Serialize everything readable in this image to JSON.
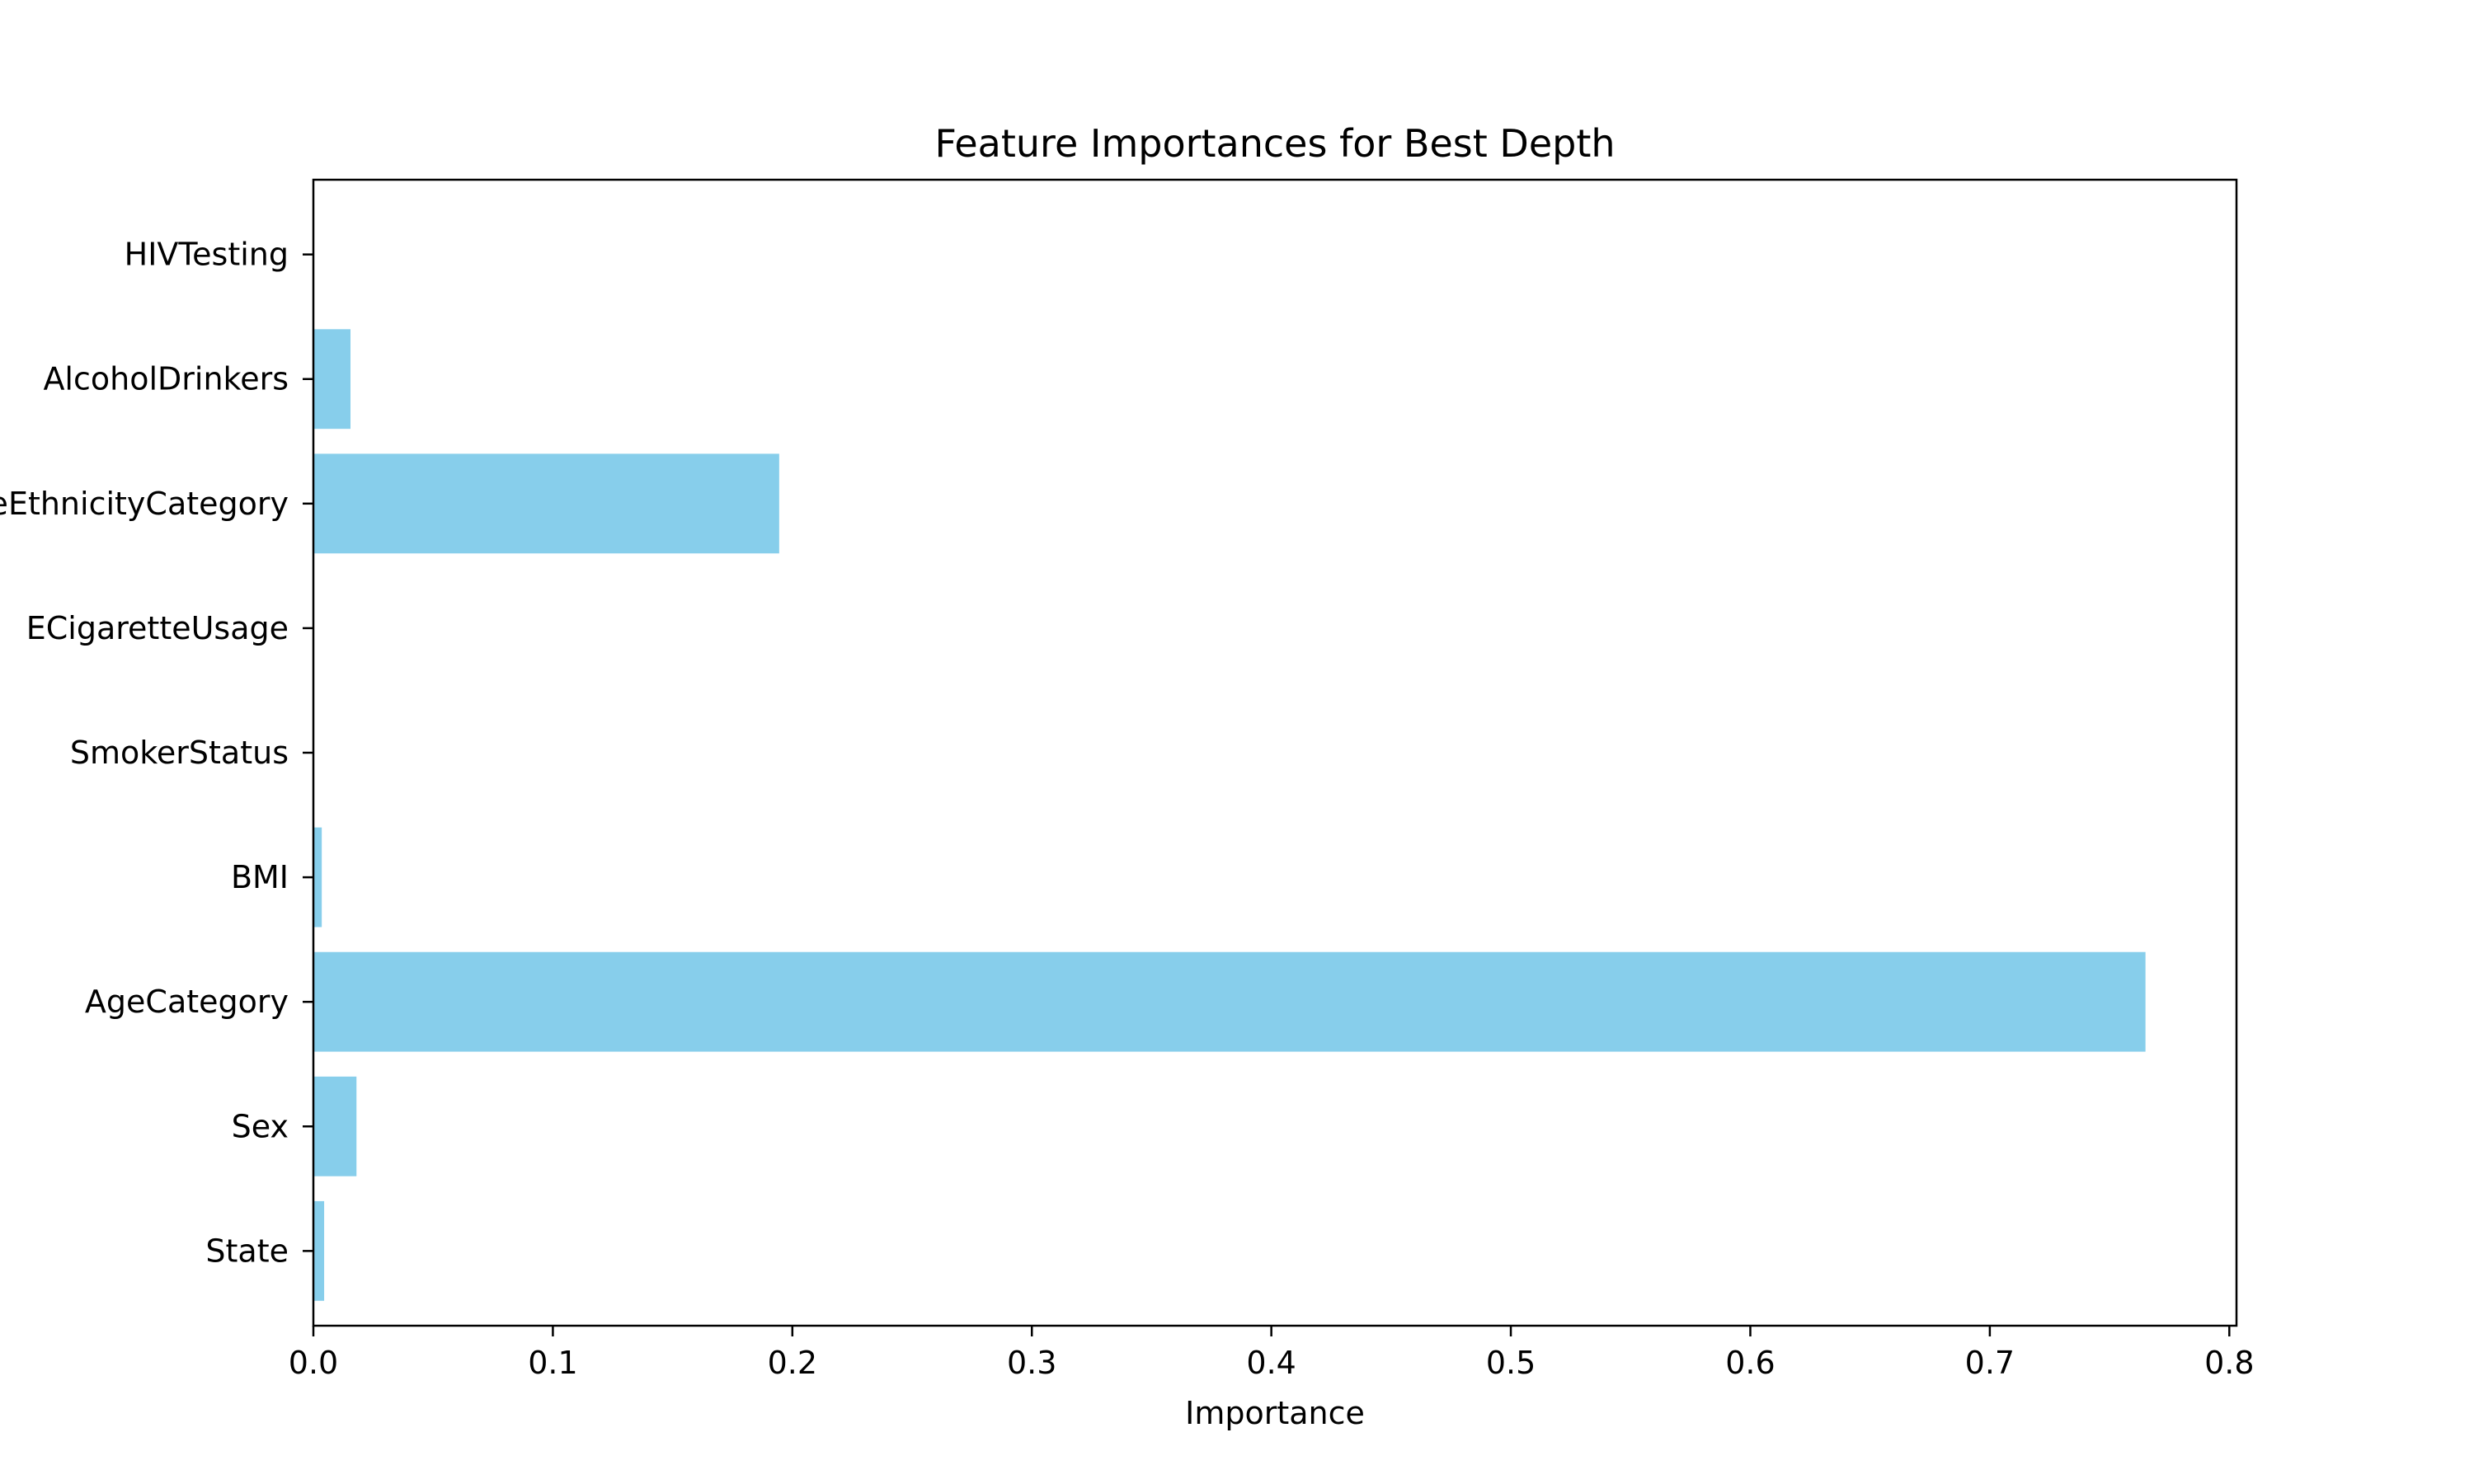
{
  "chart_data": {
    "type": "bar",
    "orientation": "horizontal",
    "title": "Feature Importances for Best Depth",
    "xlabel": "Importance",
    "ylabel": "",
    "xlim": [
      0,
      0.803
    ],
    "xticks": [
      0.0,
      0.1,
      0.2,
      0.3,
      0.4,
      0.5,
      0.6,
      0.7,
      0.8
    ],
    "xtick_labels": [
      "0.0",
      "0.1",
      "0.2",
      "0.3",
      "0.4",
      "0.5",
      "0.6",
      "0.7",
      "0.8"
    ],
    "categories": [
      "State",
      "Sex",
      "AgeCategory",
      "BMI",
      "SmokerStatus",
      "ECigaretteUsage",
      "RaceEthnicityCategory",
      "AlcoholDrinkers",
      "HIVTesting"
    ],
    "values": [
      0.0045,
      0.018,
      0.765,
      0.0035,
      0.0,
      0.0,
      0.1945,
      0.0155,
      0.0
    ],
    "bar_color": "#87ceeb",
    "grid": false,
    "legend": "none"
  }
}
